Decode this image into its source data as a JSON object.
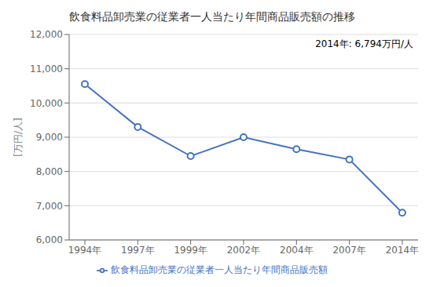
{
  "chart_data": {
    "type": "line",
    "title": "飲食料品卸売業の従業者一人当たり年間商品販売額の推移",
    "ylabel": "[万円/人]",
    "annotation": "2014年: 6,794万円/人",
    "categories": [
      "1994年",
      "1997年",
      "1999年",
      "2002年",
      "2004年",
      "2007年",
      "2014年"
    ],
    "series": [
      {
        "name": "飲食料品卸売業の従業者一人当たり年間商品販売額",
        "color": "#4472C4",
        "marker": "circle",
        "values": [
          10550,
          9300,
          8450,
          9000,
          8650,
          8350,
          6794
        ]
      }
    ],
    "ylim": [
      6000,
      12000
    ],
    "yticks": [
      {
        "value": 6000,
        "label": "6,000"
      },
      {
        "value": 7000,
        "label": "7,000"
      },
      {
        "value": 8000,
        "label": "8,000"
      },
      {
        "value": 9000,
        "label": "9,000"
      },
      {
        "value": 10000,
        "label": "10,000"
      },
      {
        "value": 11000,
        "label": "11,000"
      },
      {
        "value": 12000,
        "label": "12,000"
      }
    ],
    "grid": true,
    "legend": "bottom"
  }
}
